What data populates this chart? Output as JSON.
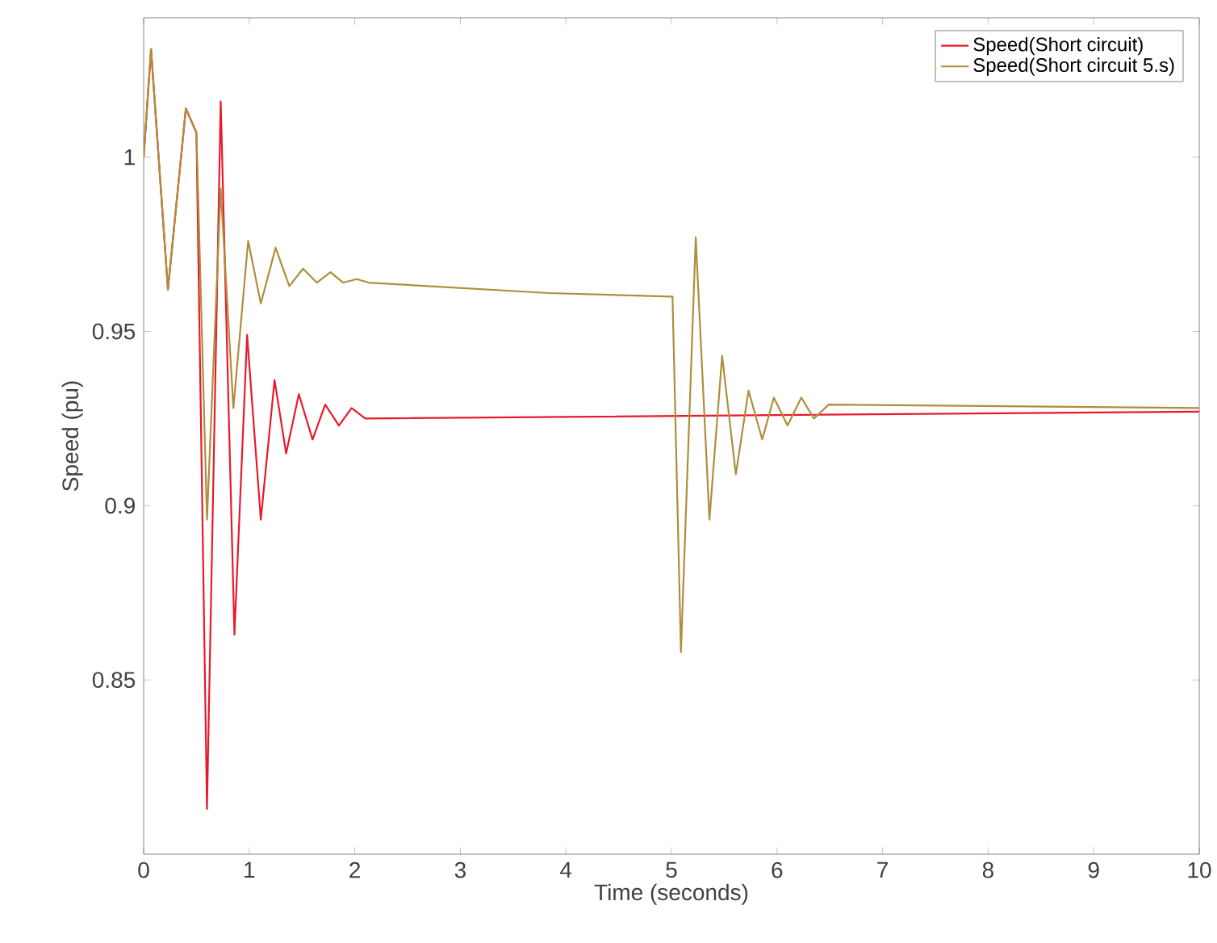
{
  "chart_data": {
    "type": "line",
    "xlabel": "Time (seconds)",
    "ylabel": "Speed (pu)",
    "xlim": [
      0,
      10
    ],
    "ylim": [
      0.8,
      1.04
    ],
    "xticks": [
      0,
      1,
      2,
      3,
      4,
      5,
      6,
      7,
      8,
      9,
      10
    ],
    "yticks": [
      0.85,
      0.9,
      0.95,
      1
    ],
    "legend": "top right",
    "grid": false,
    "series": [
      {
        "name": "Speed(Short circuit)",
        "color": "#e8192c",
        "x": [
          0,
          0.07,
          0.23,
          0.4,
          0.5,
          0.6,
          0.73,
          0.86,
          0.98,
          1.11,
          1.24,
          1.35,
          1.47,
          1.6,
          1.72,
          1.85,
          1.97,
          2.1,
          10
        ],
        "values": [
          1.0,
          1.031,
          0.962,
          1.014,
          1.007,
          0.813,
          1.016,
          0.863,
          0.949,
          0.896,
          0.936,
          0.915,
          0.932,
          0.919,
          0.929,
          0.923,
          0.928,
          0.925,
          0.927
        ]
      },
      {
        "name": "Speed(Short circuit 5.s)",
        "color": "#b08d3c",
        "x": [
          0,
          0.07,
          0.23,
          0.4,
          0.5,
          0.6,
          0.73,
          0.85,
          0.99,
          1.11,
          1.25,
          1.38,
          1.51,
          1.64,
          1.77,
          1.89,
          2.02,
          2.13,
          3.84,
          5.0,
          5.01,
          5.09,
          5.23,
          5.36,
          5.48,
          5.61,
          5.73,
          5.86,
          5.97,
          6.1,
          6.23,
          6.35,
          6.49,
          10
        ],
        "values": [
          1.0,
          1.031,
          0.962,
          1.014,
          1.007,
          0.896,
          0.991,
          0.928,
          0.976,
          0.958,
          0.974,
          0.963,
          0.968,
          0.964,
          0.967,
          0.964,
          0.965,
          0.964,
          0.961,
          0.96,
          0.96,
          0.858,
          0.977,
          0.896,
          0.943,
          0.909,
          0.933,
          0.919,
          0.931,
          0.923,
          0.931,
          0.925,
          0.929,
          0.928
        ]
      }
    ]
  }
}
